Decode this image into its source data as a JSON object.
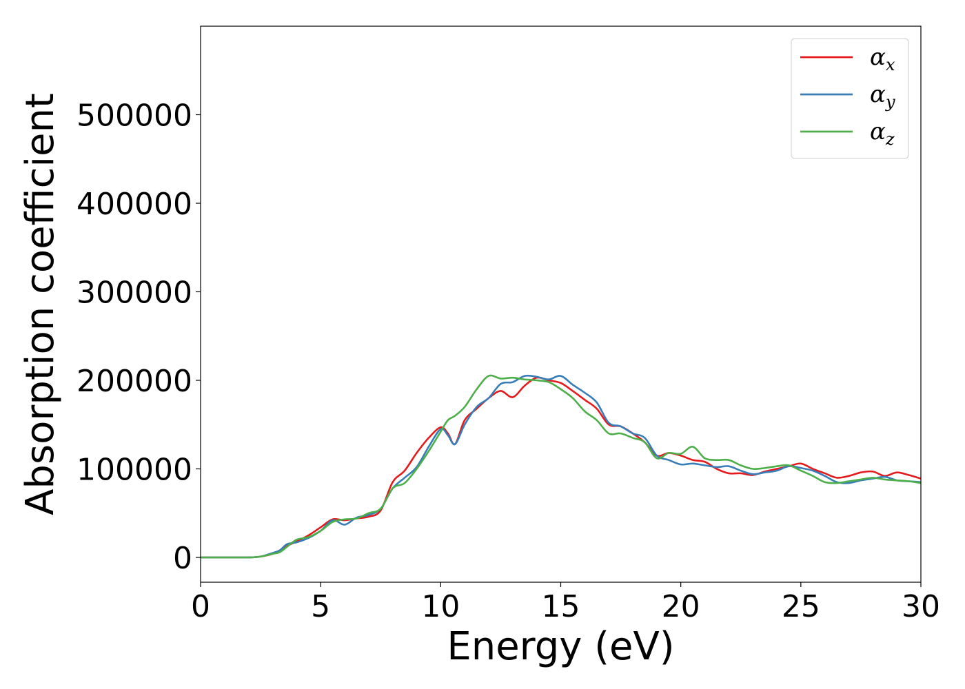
{
  "chart_data": {
    "type": "line",
    "title": "",
    "xlabel": "Energy (eV)",
    "ylabel": "Absorption coefficient",
    "xlim": [
      0,
      30
    ],
    "ylim": [
      -28000,
      600000
    ],
    "x_ticks": [
      0,
      5,
      10,
      15,
      20,
      25,
      30
    ],
    "x_tick_labels": [
      "0",
      "5",
      "10",
      "15",
      "20",
      "25",
      "30"
    ],
    "y_ticks": [
      0,
      100000,
      200000,
      300000,
      400000,
      500000
    ],
    "y_tick_labels": [
      "0",
      "100000",
      "200000",
      "300000",
      "400000",
      "500000"
    ],
    "grid": false,
    "legend_position": "top-right",
    "series": [
      {
        "name": "α",
        "subscript": "x",
        "color": "#e41a1c",
        "x": [
          0,
          1,
          2,
          2.5,
          3,
          3.3,
          3.6,
          4,
          4.5,
          5,
          5.5,
          6,
          6.5,
          7,
          7.5,
          8,
          8.5,
          9,
          9.5,
          10,
          10.3,
          10.6,
          11,
          11.5,
          12,
          12.5,
          13,
          13.5,
          14,
          14.5,
          15,
          15.5,
          16,
          16.5,
          17,
          17.5,
          18,
          18.5,
          19,
          19.5,
          20,
          20.5,
          21,
          21.5,
          22,
          22.5,
          23,
          23.5,
          24,
          24.5,
          25,
          25.5,
          26,
          26.5,
          27,
          27.5,
          28,
          28.5,
          29,
          29.5,
          30
        ],
        "values": [
          0,
          0,
          0,
          1000,
          4000,
          8000,
          13000,
          18000,
          25000,
          34000,
          43000,
          42000,
          44000,
          46000,
          53000,
          85000,
          98000,
          118000,
          135000,
          147000,
          140000,
          128000,
          155000,
          168000,
          180000,
          188000,
          181000,
          194000,
          203000,
          200000,
          197000,
          188000,
          178000,
          168000,
          150000,
          148000,
          140000,
          130000,
          115000,
          118000,
          115000,
          110000,
          108000,
          100000,
          95000,
          95000,
          93000,
          97000,
          100000,
          103000,
          106000,
          100000,
          95000,
          90000,
          92000,
          96000,
          97000,
          92000,
          96000,
          93000,
          89000
        ]
      },
      {
        "name": "α",
        "subscript": "y",
        "color": "#377eb8",
        "x": [
          0,
          1,
          2,
          2.5,
          3,
          3.3,
          3.6,
          4,
          4.5,
          5,
          5.5,
          6,
          6.5,
          7,
          7.5,
          8,
          8.5,
          9,
          9.5,
          10,
          10.3,
          10.6,
          11,
          11.5,
          12,
          12.5,
          13,
          13.5,
          14,
          14.5,
          15,
          15.5,
          16,
          16.5,
          17,
          17.5,
          18,
          18.5,
          19,
          19.5,
          20,
          20.5,
          21,
          21.5,
          22,
          22.5,
          23,
          23.5,
          24,
          24.5,
          25,
          25.5,
          26,
          26.5,
          27,
          27.5,
          28,
          28.5,
          29,
          29.5,
          30
        ],
        "values": [
          0,
          0,
          0,
          1000,
          5000,
          8000,
          15000,
          17000,
          22000,
          30000,
          42000,
          37000,
          45000,
          48000,
          55000,
          78000,
          90000,
          102000,
          125000,
          145000,
          138000,
          128000,
          150000,
          170000,
          180000,
          196000,
          198000,
          205000,
          204000,
          201000,
          205000,
          195000,
          186000,
          175000,
          152000,
          148000,
          140000,
          135000,
          115000,
          110000,
          105000,
          106000,
          104000,
          102000,
          103000,
          98000,
          94000,
          96000,
          98000,
          103000,
          101000,
          98000,
          92000,
          85000,
          84000,
          87000,
          89000,
          91000,
          87000,
          86000,
          85000
        ]
      },
      {
        "name": "α",
        "subscript": "z",
        "color": "#4daf4a",
        "x": [
          0,
          1,
          2,
          2.5,
          3,
          3.3,
          3.6,
          4,
          4.5,
          5,
          5.5,
          6,
          6.5,
          7,
          7.5,
          8,
          8.5,
          9,
          9.5,
          10,
          10.3,
          10.6,
          11,
          11.5,
          12,
          12.5,
          13,
          13.5,
          14,
          14.5,
          15,
          15.5,
          16,
          16.5,
          17,
          17.5,
          18,
          18.5,
          19,
          19.5,
          20,
          20.5,
          21,
          21.5,
          22,
          22.5,
          23,
          23.5,
          24,
          24.5,
          25,
          25.5,
          26,
          26.5,
          27,
          27.5,
          28,
          28.5,
          29,
          29.5,
          30
        ],
        "values": [
          0,
          0,
          0,
          1000,
          4000,
          6000,
          12000,
          20000,
          23000,
          30000,
          40000,
          43000,
          44000,
          50000,
          55000,
          78000,
          84000,
          100000,
          120000,
          142000,
          155000,
          160000,
          170000,
          190000,
          205000,
          202000,
          203000,
          201000,
          200000,
          198000,
          190000,
          180000,
          165000,
          155000,
          140000,
          140000,
          135000,
          130000,
          112000,
          118000,
          117000,
          125000,
          112000,
          110000,
          110000,
          104000,
          100000,
          101000,
          103000,
          104000,
          98000,
          92000,
          85000,
          84000,
          86000,
          88000,
          90000,
          88000,
          87000,
          86000,
          84000
        ]
      }
    ]
  }
}
